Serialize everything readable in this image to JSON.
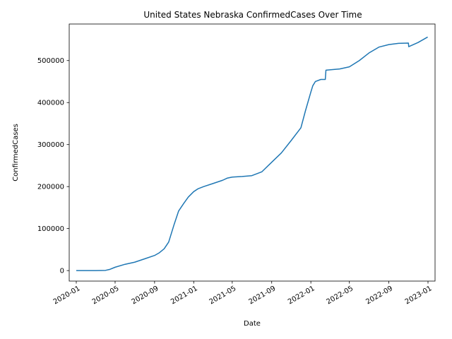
{
  "chart_data": {
    "type": "line",
    "title": "United States Nebraska ConfirmedCases Over Time",
    "xlabel": "Date",
    "ylabel": "ConfirmedCases",
    "xlim": [
      "2019-12-10",
      "2023-01-23"
    ],
    "ylim": [
      -25000,
      587000
    ],
    "x_ticks": [
      "2020-01",
      "2020-05",
      "2020-09",
      "2021-01",
      "2021-05",
      "2021-09",
      "2022-01",
      "2022-05",
      "2022-09",
      "2023-01"
    ],
    "y_ticks": [
      0,
      100000,
      200000,
      300000,
      400000,
      500000
    ],
    "grid": false,
    "legend": "none",
    "colors": {
      "line": "#1f77b4"
    },
    "series": [
      {
        "x": [
          "2020-01-01",
          "2020-03-01",
          "2020-04-01",
          "2020-04-15",
          "2020-05-01",
          "2020-06-01",
          "2020-07-01",
          "2020-08-01",
          "2020-09-01",
          "2020-09-15",
          "2020-10-01",
          "2020-10-15",
          "2020-11-01",
          "2020-11-15",
          "2020-12-01",
          "2020-12-15",
          "2021-01-01",
          "2021-01-15",
          "2021-02-01",
          "2021-03-01",
          "2021-04-01",
          "2021-04-15",
          "2021-05-01",
          "2021-06-01",
          "2021-07-01",
          "2021-08-01",
          "2021-09-01",
          "2021-10-01",
          "2021-11-01",
          "2021-12-01",
          "2021-12-15",
          "2022-01-01",
          "2022-01-07",
          "2022-01-15",
          "2022-02-01",
          "2022-02-15",
          "2022-02-17",
          "2022-03-01",
          "2022-04-01",
          "2022-05-01",
          "2022-06-01",
          "2022-07-01",
          "2022-08-01",
          "2022-09-01",
          "2022-10-01",
          "2022-11-01",
          "2022-11-02",
          "2022-12-01",
          "2022-12-31"
        ],
        "y": [
          0,
          0,
          500,
          3000,
          8000,
          15000,
          20000,
          28000,
          36000,
          42000,
          52000,
          68000,
          110000,
          142000,
          160000,
          175000,
          188000,
          195000,
          200000,
          207000,
          215000,
          220000,
          222500,
          224000,
          226000,
          235000,
          258000,
          280000,
          310000,
          340000,
          380000,
          425000,
          440000,
          450000,
          455000,
          455000,
          477000,
          478000,
          480000,
          485000,
          500000,
          518000,
          532000,
          538000,
          541000,
          541500,
          533000,
          543000,
          556000
        ]
      }
    ]
  }
}
